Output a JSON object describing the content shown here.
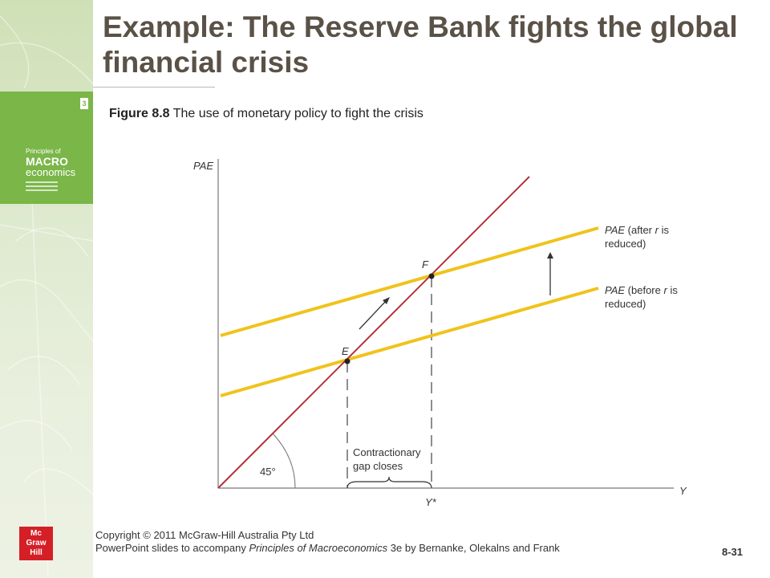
{
  "slide": {
    "title": "Example: The Reserve Bank fights the global financial crisis",
    "page_number": "8-31"
  },
  "caption": {
    "figure_label": "Figure 8.8",
    "figure_text": " The use of monetary policy to fight the crisis"
  },
  "book_cover": {
    "edition": "3",
    "line1": "Principles of",
    "line2": "MACRO",
    "line3": "economics"
  },
  "logo": {
    "line1": "Mc",
    "line2": "Graw",
    "line3": "Hill"
  },
  "footer": {
    "copyright": "Copyright © 2011 McGraw-Hill Australia Pty Ltd",
    "line2_prefix": "PowerPoint slides to accompany ",
    "line2_italic": "Principles of Macroeconomics",
    "line2_suffix": " 3e by Bernanke, Olekalns and Frank"
  },
  "diagram": {
    "y_axis_label": "PAE",
    "x_axis_label": "Y",
    "potential_output_label": "Y*",
    "angle_label": "45°",
    "point_e": "E",
    "point_f": "F",
    "gap_label_line1": "Contractionary",
    "gap_label_line2": "gap closes",
    "pae_after": {
      "italic": "PAE",
      "text1": " (after ",
      "r": "r",
      "text2": " is",
      "line2": "reduced)"
    },
    "pae_before": {
      "italic": "PAE",
      "text1": " (before ",
      "r": "r",
      "text2": " is",
      "line2": "reduced)"
    },
    "colors": {
      "line_45": "#b5323a",
      "pae_lines": "#f0c31c",
      "axes": "#777777"
    }
  }
}
